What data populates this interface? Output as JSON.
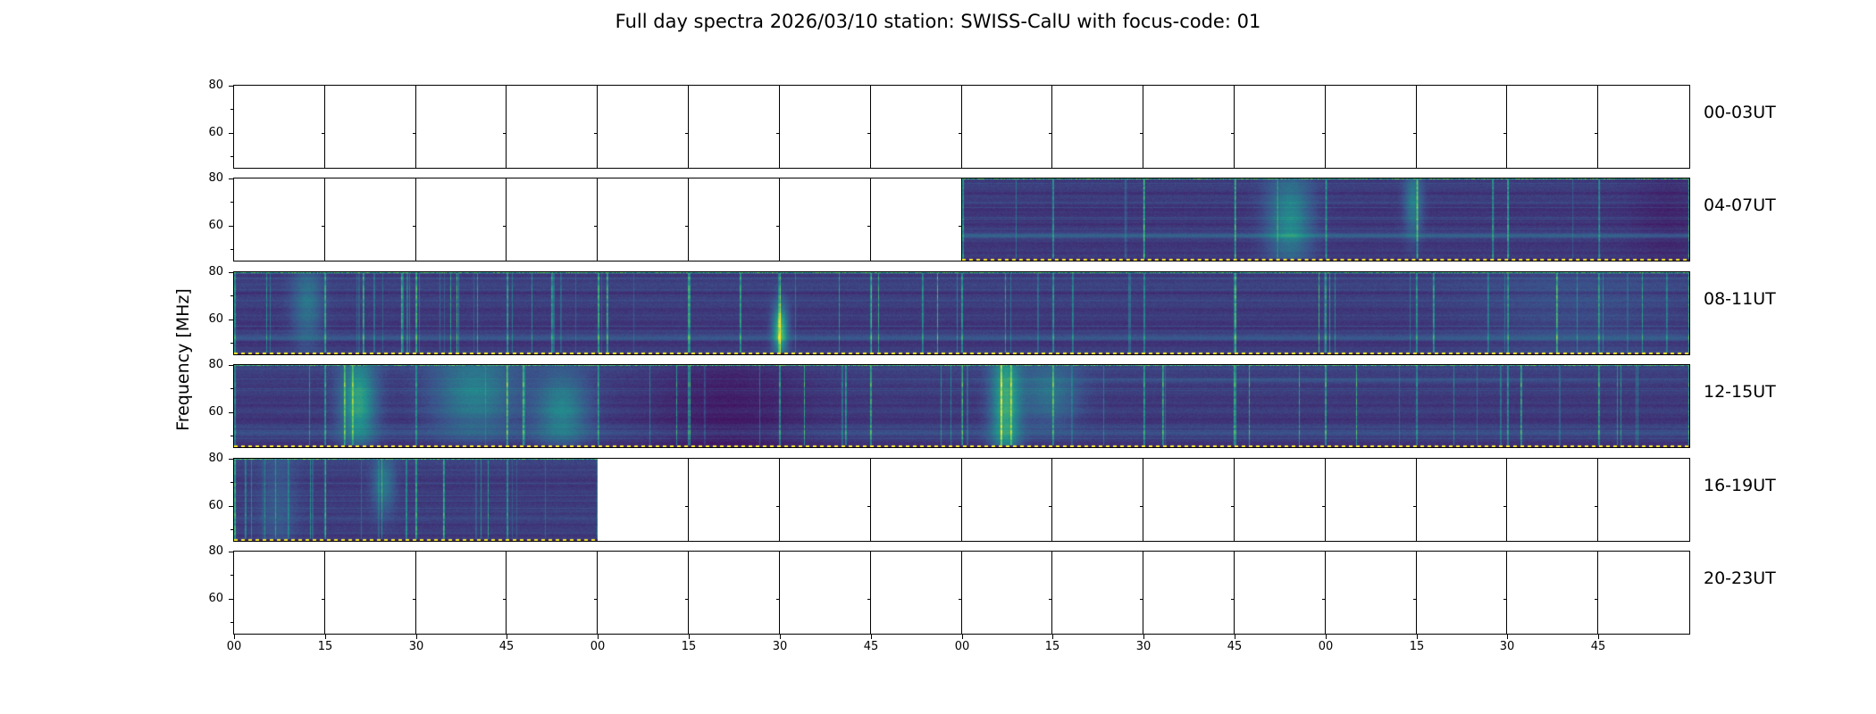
{
  "chart_data": {
    "type": "heatmap",
    "title": "Full day spectra 2026/03/10 station: SWISS-CalU with focus-code: 01",
    "ylabel": "Frequency [MHz]",
    "xlabel": "",
    "ylim": [
      45,
      80
    ],
    "y_ticks": [
      {
        "label": "80",
        "frac": 0.0
      },
      {
        "label": "60",
        "frac": 0.5714
      }
    ],
    "x_tick_labels": [
      "00",
      "15",
      "30",
      "45",
      "00",
      "15",
      "30",
      "45",
      "00",
      "15",
      "30",
      "45",
      "00",
      "15",
      "30",
      "45"
    ],
    "segments_per_row": 16,
    "segment_minutes": 15,
    "rows": [
      {
        "label": "00-03UT",
        "filled_start": null,
        "filled_count": 0
      },
      {
        "label": "04-07UT",
        "filled_start": 8,
        "filled_count": 8
      },
      {
        "label": "08-11UT",
        "filled_start": 0,
        "filled_count": 16
      },
      {
        "label": "12-15UT",
        "filled_start": 0,
        "filled_count": 16
      },
      {
        "label": "16-19UT",
        "filled_start": 0,
        "filled_count": 4
      },
      {
        "label": "20-23UT",
        "filled_start": null,
        "filled_count": 0
      }
    ],
    "colormap": "viridis",
    "colors": {
      "background": "#ffffff",
      "frame": "#000000",
      "spectrum_low": "#440154",
      "spectrum_mid": "#21918c",
      "spectrum_high": "#fde725",
      "bottom_marker": "#fde725"
    },
    "legend": "none",
    "grid": "off"
  }
}
